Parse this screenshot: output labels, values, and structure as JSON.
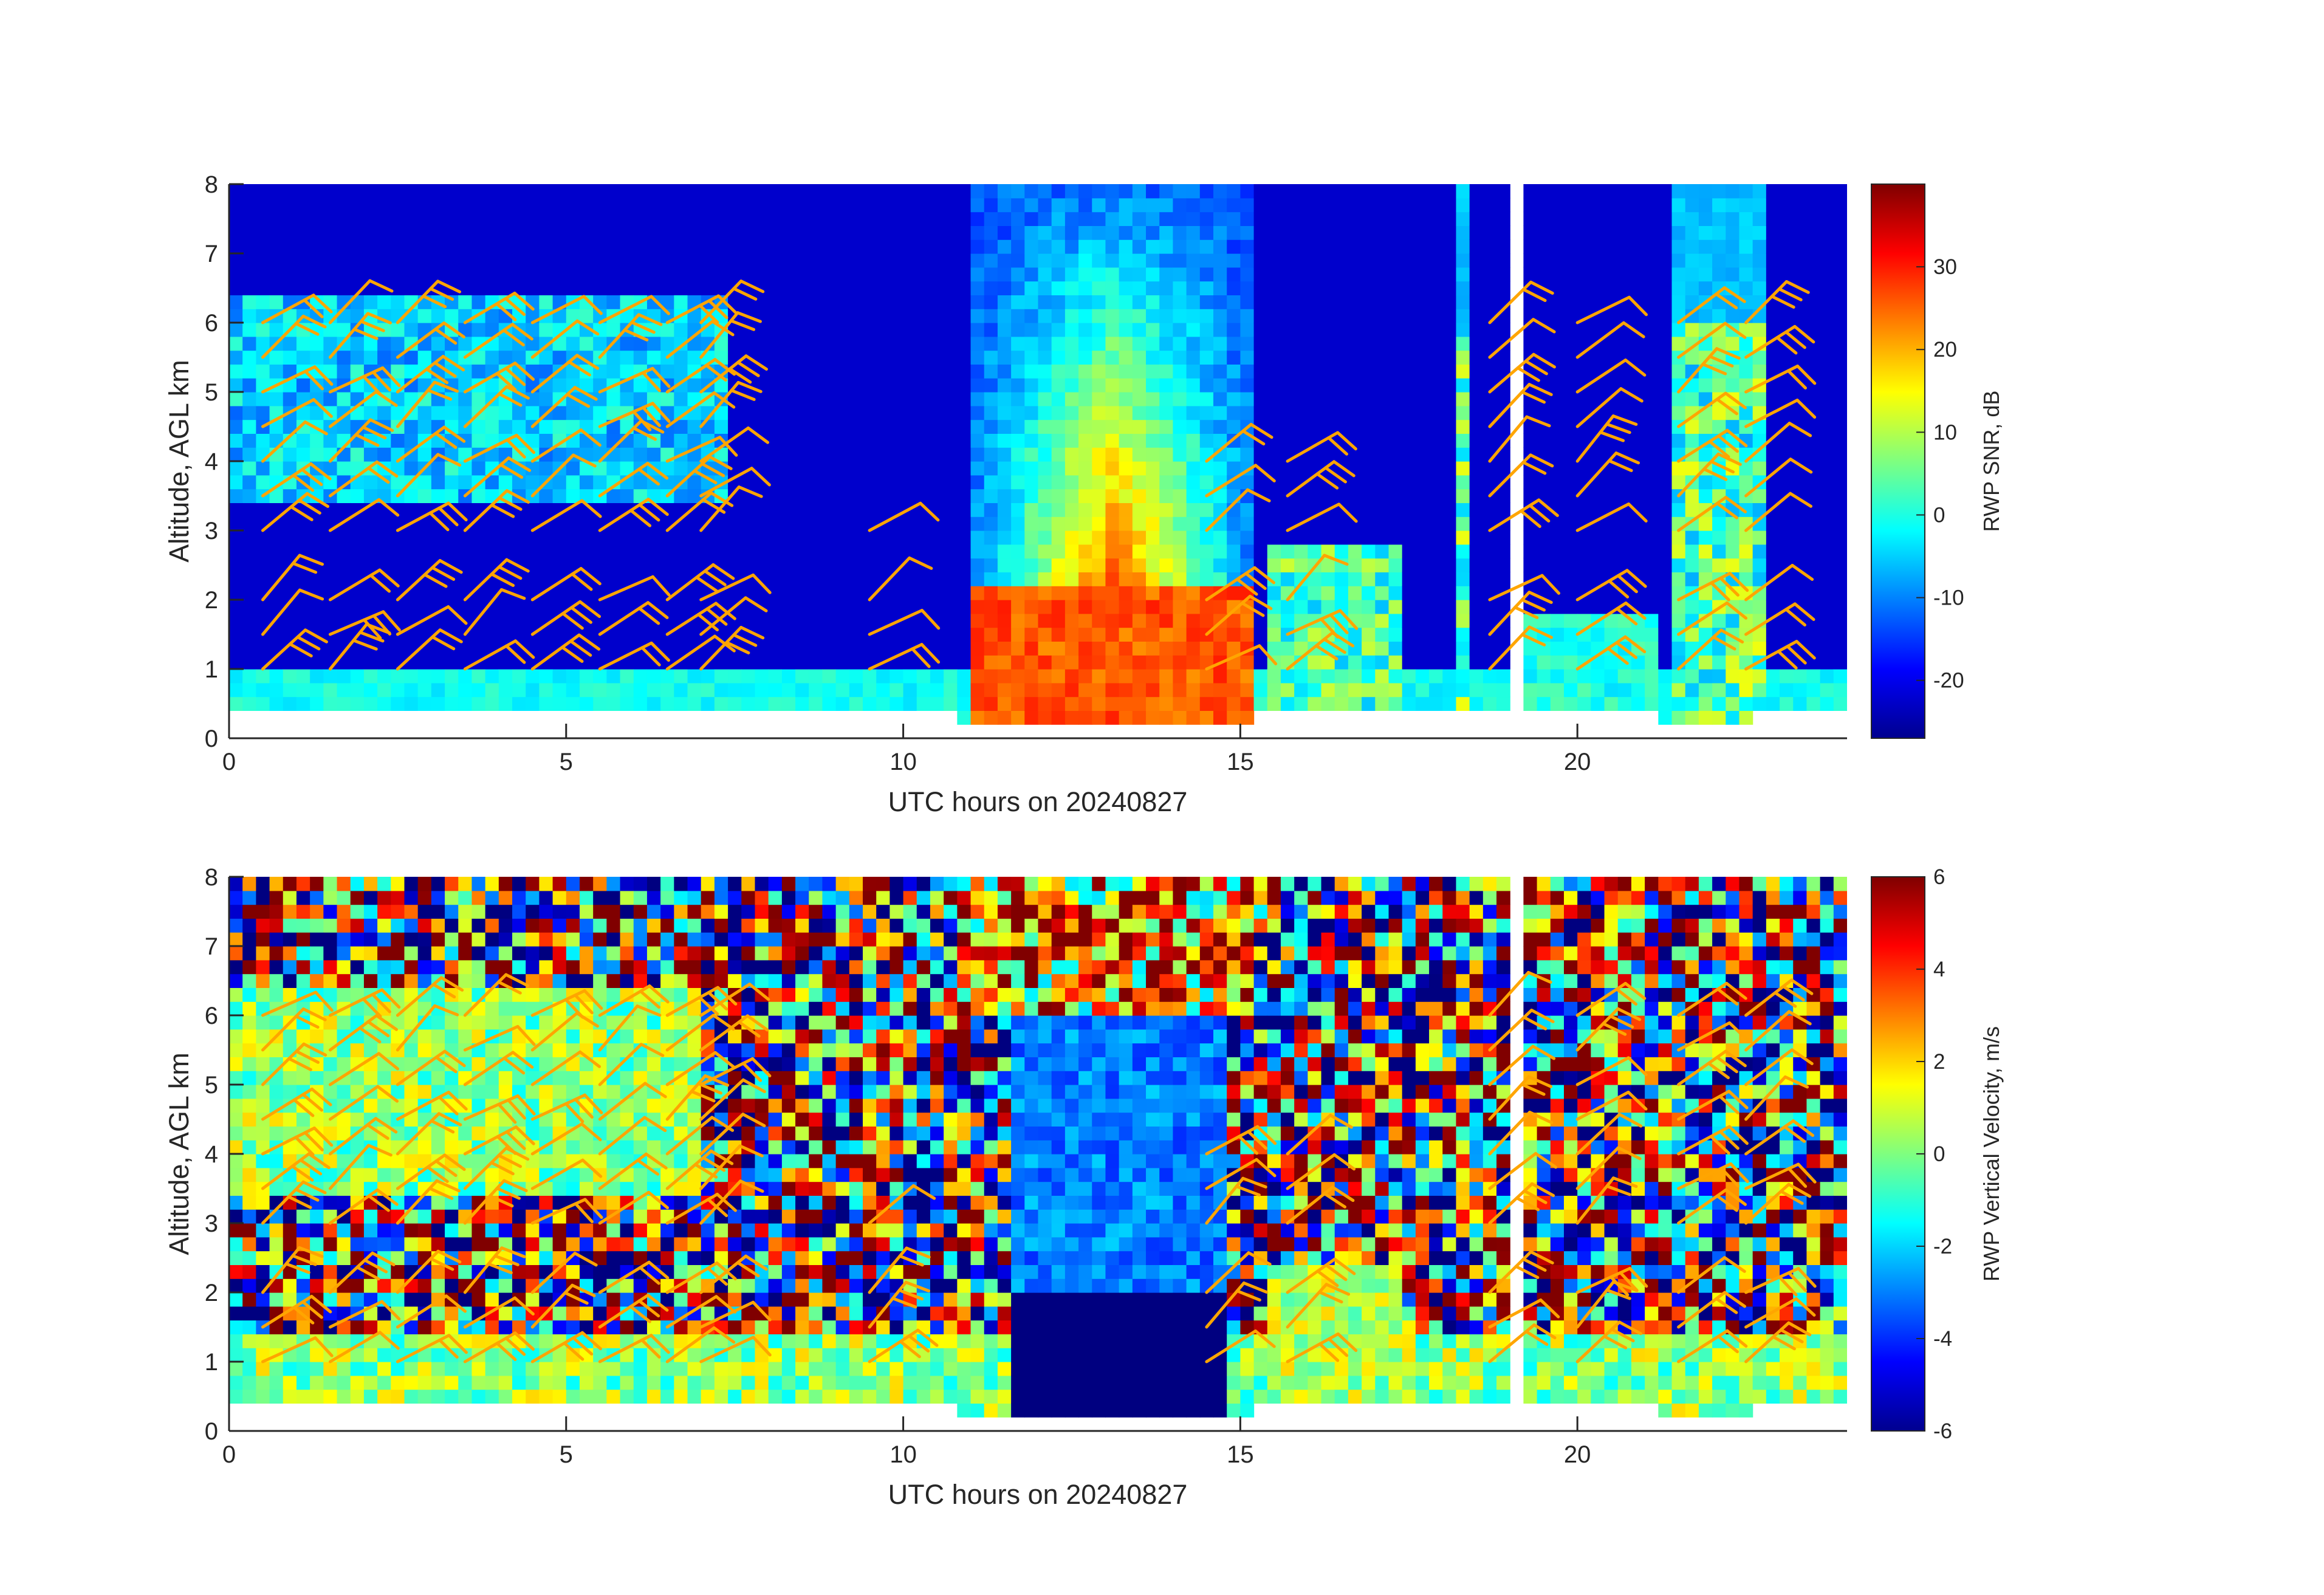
{
  "chart_data": [
    {
      "type": "heatmap",
      "variable": "snr",
      "xlabel": "UTC hours on 20240827",
      "ylabel": "Altitude, AGL km",
      "xlim": [
        0,
        24
      ],
      "ylim": [
        0,
        8
      ],
      "xticks": [
        0,
        5,
        10,
        15,
        20
      ],
      "yticks": [
        0,
        1,
        2,
        3,
        4,
        5,
        6,
        7,
        8
      ],
      "colorbar": {
        "label": "RWP SNR, dB",
        "range": [
          -27,
          40
        ],
        "ticks": [
          -20,
          -10,
          0,
          10,
          20,
          30
        ],
        "colormap": "jet"
      },
      "overlay": "wind-barbs",
      "barb_color": "#ffa500"
    },
    {
      "type": "heatmap",
      "variable": "vertical-velocity",
      "xlabel": "UTC hours on 20240827",
      "ylabel": "Altitude, AGL km",
      "xlim": [
        0,
        24
      ],
      "ylim": [
        0,
        8
      ],
      "xticks": [
        0,
        5,
        10,
        15,
        20
      ],
      "yticks": [
        0,
        1,
        2,
        3,
        4,
        5,
        6,
        7,
        8
      ],
      "colorbar": {
        "label": "RWP Vertical Velocity, m/s",
        "range": [
          -6,
          6
        ],
        "ticks": [
          -6,
          -4,
          -2,
          0,
          2,
          4,
          6
        ],
        "colormap": "jet"
      },
      "overlay": "wind-barbs",
      "barb_color": "#ffa500"
    }
  ]
}
